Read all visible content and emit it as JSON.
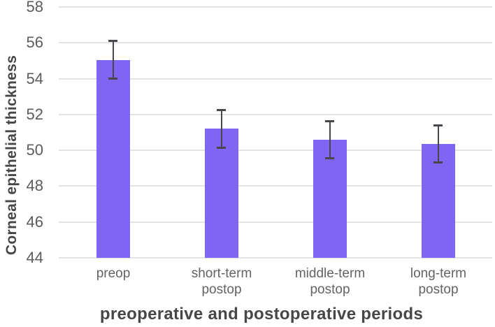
{
  "chart_data": {
    "type": "bar",
    "title": "",
    "xlabel": "preoperative and postoperative periods",
    "ylabel": "Corneal epithelial thickness",
    "categories": [
      "preop",
      "short-term postop",
      "middle-term postop",
      "long-term postop"
    ],
    "category_lines": [
      [
        "preop"
      ],
      [
        "short-term",
        "postop"
      ],
      [
        "middle-term",
        "postop"
      ],
      [
        "long-term",
        "postop"
      ]
    ],
    "values": [
      55.05,
      51.2,
      50.6,
      50.35
    ],
    "errors": [
      1.1,
      1.1,
      1.1,
      1.1
    ],
    "ylim": [
      44,
      58
    ],
    "ytick_step": 2,
    "yticks": [
      58,
      56,
      54,
      52,
      50,
      48,
      46,
      44
    ],
    "grid": "horizontal",
    "legend": "none",
    "colors": {
      "bar": "#8065f3",
      "error_bar": "#48484c",
      "gridline": "#e3e3e3",
      "tick_label": "#5c5c5c",
      "axis_title": "#474747",
      "background": "#ffffff"
    }
  }
}
